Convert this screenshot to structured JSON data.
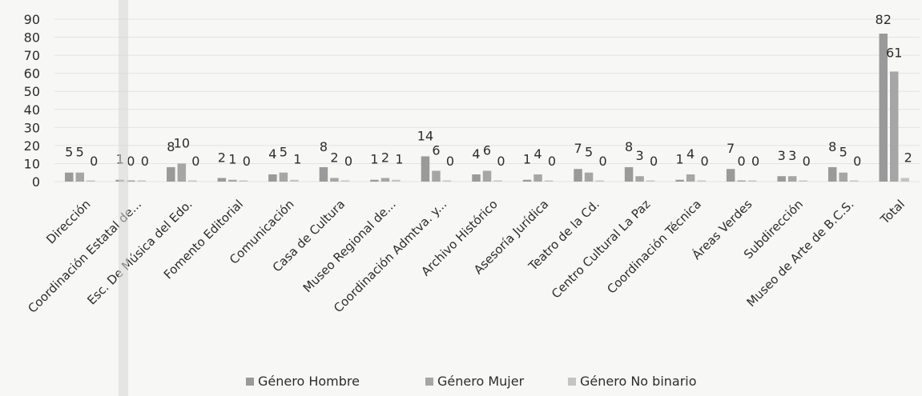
{
  "chart_data": {
    "type": "bar",
    "title": "",
    "xlabel": "",
    "ylabel": "",
    "ylim": [
      0,
      90
    ],
    "yticks": [
      0,
      10,
      20,
      30,
      40,
      50,
      60,
      70,
      80,
      90
    ],
    "grid": true,
    "legend_position": "bottom",
    "categories": [
      "Dirección",
      "Coordinación Estatal de...",
      "Esc. De Música del Edo.",
      "Fomento Editorial",
      "Comunicación",
      "Casa de Cultura",
      "Museo Regional de...",
      "Coordinación Admtva. y...",
      "Archivo Histórico",
      "Asesoría Jurídica",
      "Teatro de la Cd.",
      "Centro Cultural La Paz",
      "Coordinación Técnica",
      "Áreas Verdes",
      "Subdirección",
      "Museo de Arte de B.C.S.",
      "Total"
    ],
    "series": [
      {
        "name": "Género Hombre",
        "color": "#9a9a9a",
        "values": [
          5,
          1,
          8,
          2,
          4,
          8,
          1,
          14,
          4,
          1,
          7,
          8,
          1,
          7,
          3,
          8,
          82
        ]
      },
      {
        "name": "Género Mujer",
        "color": "#a6a6a6",
        "values": [
          5,
          0,
          10,
          1,
          5,
          2,
          2,
          6,
          6,
          4,
          5,
          3,
          4,
          0,
          3,
          5,
          61
        ]
      },
      {
        "name": "Género No binario",
        "color": "#c4c4c4",
        "values": [
          0,
          0,
          0,
          0,
          1,
          0,
          1,
          0,
          0,
          0,
          0,
          0,
          0,
          0,
          0,
          0,
          2
        ]
      }
    ]
  }
}
